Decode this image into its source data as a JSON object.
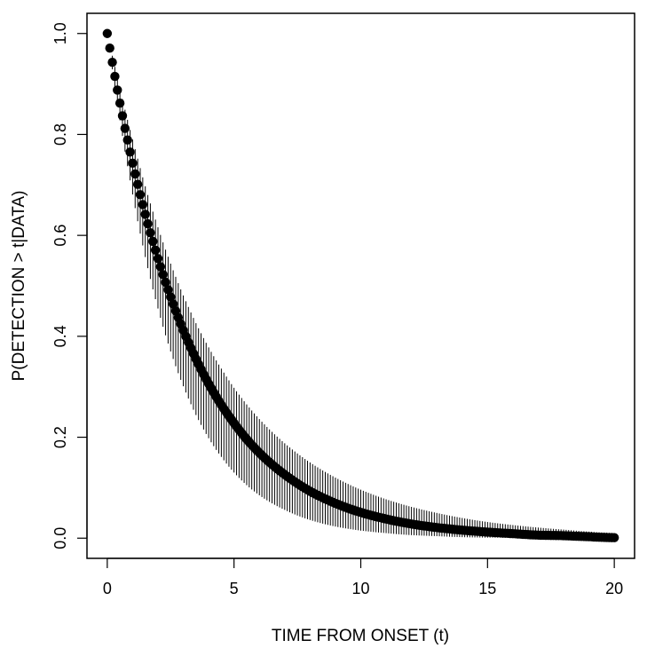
{
  "chart_data": {
    "type": "scatter",
    "title": "",
    "xlabel": "TIME FROM ONSET (t)",
    "ylabel": "P(DETECTION > t|DATA)",
    "xlim": [
      -0.8,
      20.8
    ],
    "ylim": [
      -0.04,
      1.04
    ],
    "x_ticks": [
      0,
      5,
      10,
      15,
      20
    ],
    "y_ticks": [
      0.0,
      0.2,
      0.4,
      0.6,
      0.8,
      1.0
    ],
    "x_tick_labels": [
      "0",
      "5",
      "10",
      "15",
      "20"
    ],
    "y_tick_labels": [
      "0.0",
      "0.2",
      "0.4",
      "0.6",
      "0.8",
      "1.0"
    ],
    "grid": false,
    "legend": "none",
    "point_color": "#000000",
    "series": [
      {
        "x": [
          0,
          0.1,
          0.2,
          0.3,
          0.4,
          0.5,
          0.6,
          0.7,
          0.8,
          0.9,
          1.0,
          1.2,
          1.4,
          1.6,
          1.8,
          2.0,
          2.5,
          3.0,
          3.5,
          4.0,
          4.5,
          5.0,
          5.5,
          6.0,
          7.0,
          8.0,
          9.0,
          10.0,
          11.0,
          12.0,
          13.0,
          14.0,
          15.0,
          16.0,
          17.0,
          18.0,
          19.0,
          20.0
        ],
        "y": [
          1.0,
          0.971,
          0.943,
          0.915,
          0.888,
          0.862,
          0.837,
          0.812,
          0.789,
          0.765,
          0.743,
          0.701,
          0.661,
          0.623,
          0.588,
          0.554,
          0.478,
          0.412,
          0.355,
          0.306,
          0.264,
          0.228,
          0.196,
          0.169,
          0.126,
          0.093,
          0.069,
          0.051,
          0.038,
          0.028,
          0.021,
          0.016,
          0.012,
          0.009,
          0.006,
          0.005,
          0.003,
          0.001
        ],
        "lower": [
          1.0,
          0.964,
          0.929,
          0.894,
          0.861,
          0.828,
          0.797,
          0.766,
          0.737,
          0.709,
          0.681,
          0.628,
          0.58,
          0.535,
          0.493,
          0.455,
          0.37,
          0.301,
          0.244,
          0.198,
          0.161,
          0.13,
          0.105,
          0.085,
          0.056,
          0.036,
          0.023,
          0.015,
          0.01,
          0.006,
          0.004,
          0.002,
          0.001,
          0.001,
          0.0,
          0.0,
          0.0,
          0.0
        ],
        "upper": [
          1.0,
          0.978,
          0.956,
          0.934,
          0.912,
          0.891,
          0.87,
          0.849,
          0.829,
          0.809,
          0.79,
          0.752,
          0.715,
          0.68,
          0.647,
          0.616,
          0.544,
          0.481,
          0.426,
          0.378,
          0.336,
          0.298,
          0.265,
          0.236,
          0.188,
          0.15,
          0.12,
          0.096,
          0.077,
          0.062,
          0.05,
          0.04,
          0.032,
          0.026,
          0.021,
          0.017,
          0.013,
          0.01
        ]
      }
    ]
  }
}
